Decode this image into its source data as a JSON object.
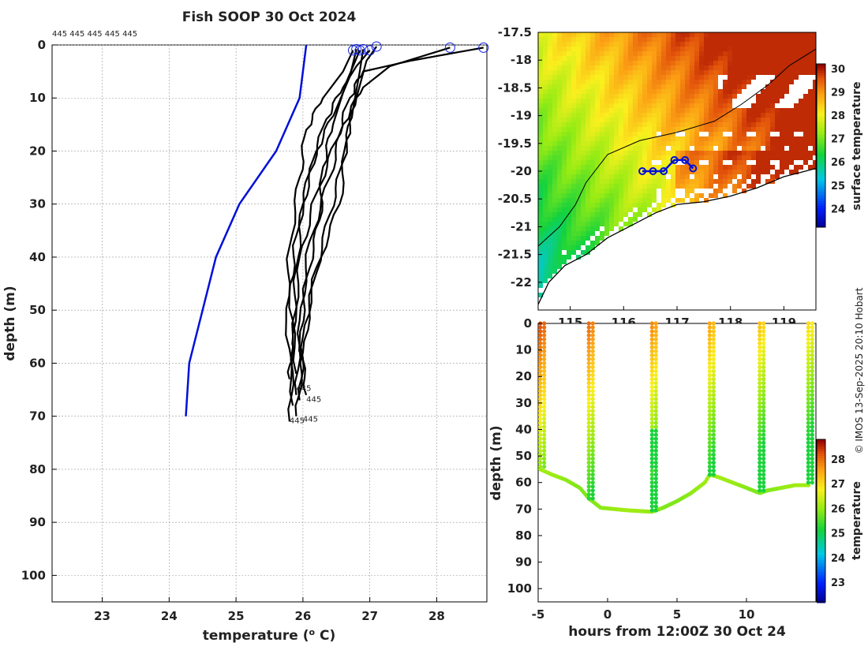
{
  "credit": "© IMOS 13-Sep-2025 20:10 Hobart",
  "chart_data": [
    {
      "id": "profile",
      "type": "line",
      "title": "Fish SOOP 30 Oct 2024",
      "xlabel": "temperature (",
      "xlabel_sup": "o",
      "xlabel_end": " C)",
      "ylabel": "depth (m)",
      "xlim": [
        22.25,
        28.75
      ],
      "ylim": [
        0,
        105
      ],
      "y_inverted": true,
      "grid": true,
      "x_ticks": [
        23,
        24,
        25,
        26,
        27,
        28
      ],
      "y_ticks": [
        0,
        10,
        20,
        30,
        40,
        50,
        60,
        70,
        80,
        90,
        100
      ],
      "header_labels": "445 445 445 445 445",
      "end_labels": [
        {
          "text": "445",
          "x": 26.05,
          "y": 67.3
        },
        {
          "text": "445",
          "x": 25.9,
          "y": 65.2
        },
        {
          "text": "445",
          "x": 25.8,
          "y": 71.3
        },
        {
          "text": "445",
          "x": 26.0,
          "y": 71.0
        }
      ],
      "reference_series": {
        "name": "climatology",
        "color": "#0010d8",
        "points": [
          [
            26.05,
            0
          ],
          [
            25.95,
            10
          ],
          [
            25.6,
            20
          ],
          [
            25.05,
            30
          ],
          [
            24.7,
            40
          ],
          [
            24.5,
            50
          ],
          [
            24.3,
            60
          ],
          [
            24.25,
            70
          ]
        ]
      },
      "series": [
        {
          "name": "profile-1",
          "color": "#000000",
          "points": [
            [
              28.7,
              0.5
            ],
            [
              27.6,
              3
            ],
            [
              26.9,
              5
            ],
            [
              26.7,
              10
            ],
            [
              26.5,
              18
            ],
            [
              26.2,
              28
            ],
            [
              25.95,
              40
            ],
            [
              25.85,
              55
            ],
            [
              25.8,
              63
            ]
          ]
        },
        {
          "name": "profile-2",
          "color": "#000000",
          "points": [
            [
              28.2,
              0.5
            ],
            [
              27.3,
              4
            ],
            [
              26.9,
              8
            ],
            [
              26.6,
              15
            ],
            [
              26.4,
              25
            ],
            [
              26.1,
              37
            ],
            [
              25.95,
              52
            ],
            [
              25.9,
              66
            ]
          ]
        },
        {
          "name": "profile-3",
          "color": "#000000",
          "points": [
            [
              27.1,
              0.3
            ],
            [
              26.95,
              3
            ],
            [
              26.8,
              10
            ],
            [
              26.65,
              18
            ],
            [
              26.55,
              30
            ],
            [
              26.2,
              42
            ],
            [
              26.0,
              55
            ],
            [
              25.95,
              67
            ]
          ]
        },
        {
          "name": "profile-4",
          "color": "#000000",
          "points": [
            [
              26.9,
              0.8
            ],
            [
              26.85,
              5
            ],
            [
              26.75,
              12
            ],
            [
              26.6,
              22
            ],
            [
              26.4,
              32
            ],
            [
              26.15,
              45
            ],
            [
              26.0,
              58
            ],
            [
              25.9,
              70
            ]
          ]
        },
        {
          "name": "profile-5",
          "color": "#000000",
          "points": [
            [
              26.8,
              0.8
            ],
            [
              26.7,
              6
            ],
            [
              26.5,
              12
            ],
            [
              26.2,
              20
            ],
            [
              26.0,
              30
            ],
            [
              25.9,
              42
            ],
            [
              25.85,
              57
            ],
            [
              25.8,
              71
            ]
          ]
        },
        {
          "name": "profile-6",
          "color": "#000000",
          "points": [
            [
              26.75,
              1
            ],
            [
              26.6,
              5
            ],
            [
              26.3,
              10
            ],
            [
              26.05,
              16
            ],
            [
              25.95,
              25
            ],
            [
              25.8,
              38
            ],
            [
              25.75,
              52
            ],
            [
              25.85,
              68
            ]
          ]
        },
        {
          "name": "profile-7",
          "color": "#000000",
          "points": [
            [
              27.0,
              1
            ],
            [
              26.8,
              4
            ],
            [
              26.6,
              8
            ],
            [
              26.35,
              14
            ],
            [
              26.1,
              24
            ],
            [
              25.9,
              36
            ],
            [
              25.8,
              47
            ],
            [
              25.9,
              62
            ]
          ]
        },
        {
          "name": "profile-8",
          "color": "#000000",
          "points": [
            [
              26.85,
              1
            ],
            [
              26.65,
              7
            ],
            [
              26.45,
              15
            ],
            [
              26.3,
              23
            ],
            [
              26.25,
              33
            ],
            [
              26.05,
              44
            ],
            [
              25.95,
              56
            ],
            [
              26.05,
              66
            ]
          ]
        }
      ]
    },
    {
      "id": "map",
      "type": "heatmap",
      "xlim": [
        114.4,
        119.6
      ],
      "ylim": [
        -22.5,
        -17.5
      ],
      "x_ticks": [
        115,
        116,
        117,
        118,
        119
      ],
      "y_ticks": [
        -17.5,
        -18,
        -18.5,
        -19,
        -19.5,
        -20,
        -20.5,
        -21,
        -21.5,
        -22
      ],
      "colorbar_label": "surface temperature",
      "colorbar_range": [
        23.2,
        30.2
      ],
      "colorbar_ticks": [
        24,
        25,
        26,
        27,
        28,
        29,
        30
      ],
      "track": {
        "color": "#0010d8",
        "points": [
          [
            116.35,
            -20.0
          ],
          [
            116.55,
            -20.0
          ],
          [
            116.75,
            -20.0
          ],
          [
            116.95,
            -19.8
          ],
          [
            117.15,
            -19.8
          ],
          [
            117.3,
            -19.95
          ]
        ]
      },
      "coast_line": [
        [
          114.4,
          -22.4
        ],
        [
          114.6,
          -22.0
        ],
        [
          114.9,
          -21.7
        ],
        [
          115.3,
          -21.5
        ],
        [
          115.7,
          -21.2
        ],
        [
          116.1,
          -21.0
        ],
        [
          116.6,
          -20.75
        ],
        [
          117.0,
          -20.6
        ],
        [
          117.5,
          -20.55
        ],
        [
          118.0,
          -20.45
        ],
        [
          118.5,
          -20.3
        ],
        [
          119.0,
          -20.1
        ],
        [
          119.6,
          -19.95
        ]
      ],
      "shelf_line": [
        [
          114.4,
          -21.35
        ],
        [
          114.8,
          -21.0
        ],
        [
          115.1,
          -20.6
        ],
        [
          115.3,
          -20.2
        ],
        [
          115.7,
          -19.7
        ],
        [
          116.3,
          -19.45
        ],
        [
          117.0,
          -19.3
        ],
        [
          117.7,
          -19.1
        ],
        [
          118.2,
          -18.8
        ],
        [
          118.7,
          -18.45
        ],
        [
          119.1,
          -18.1
        ],
        [
          119.6,
          -17.8
        ]
      ]
    },
    {
      "id": "timeseries",
      "type": "scatter",
      "xlabel": "hours from 12:00Z 30 Oct 24",
      "ylabel": "depth (m)",
      "xlim": [
        -5,
        15
      ],
      "ylim": [
        0,
        105
      ],
      "y_inverted": true,
      "x_ticks": [
        -5,
        0,
        5,
        10
      ],
      "y_ticks": [
        0,
        10,
        20,
        30,
        40,
        50,
        60,
        70,
        80,
        90,
        100
      ],
      "colorbar_label": "temperature",
      "colorbar_range": [
        22.2,
        28.8
      ],
      "colorbar_ticks": [
        23,
        24,
        25,
        26,
        27,
        28
      ],
      "casts": [
        -4.85,
        -1.35,
        3.2,
        7.35,
        10.95,
        14.45
      ],
      "bottom_depth": [
        [
          -4.85,
          55
        ],
        [
          -4.0,
          57
        ],
        [
          -3.0,
          59
        ],
        [
          -2.0,
          62
        ],
        [
          -1.35,
          66
        ],
        [
          -0.5,
          69.5
        ],
        [
          0.5,
          70
        ],
        [
          1.5,
          70.5
        ],
        [
          2.5,
          70.8
        ],
        [
          3.2,
          71
        ],
        [
          4.0,
          69.5
        ],
        [
          5.0,
          67
        ],
        [
          6.0,
          64
        ],
        [
          7.0,
          60
        ],
        [
          7.35,
          57
        ],
        [
          8.0,
          58
        ],
        [
          9.0,
          60
        ],
        [
          10.0,
          62
        ],
        [
          10.95,
          64
        ],
        [
          11.5,
          63
        ],
        [
          12.5,
          62
        ],
        [
          13.5,
          61
        ],
        [
          14.45,
          61
        ]
      ]
    }
  ]
}
